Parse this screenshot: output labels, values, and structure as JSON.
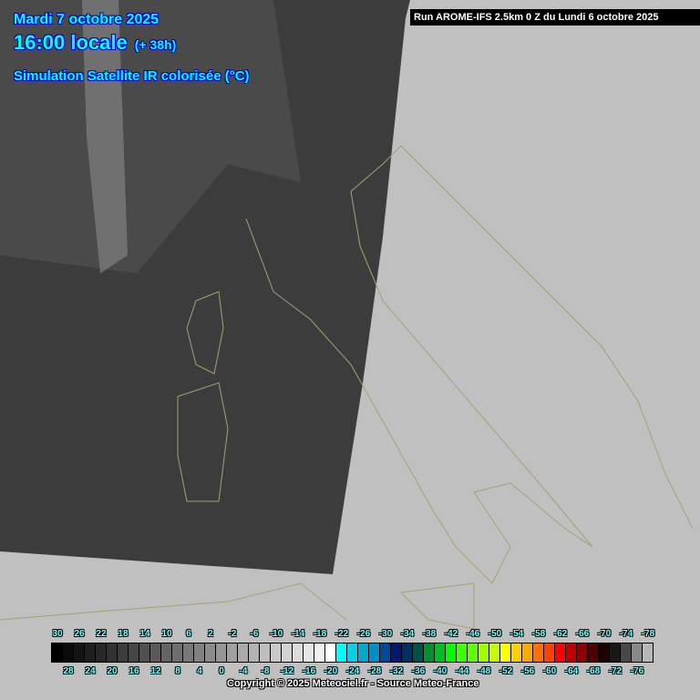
{
  "header": {
    "date": "Mardi 7 octobre 2025",
    "time": "16:00 locale",
    "lead": "(+ 38h)",
    "product": "Simulation Satellite IR colorisée (°C)"
  },
  "run_banner": "Run AROME-IFS 2.5km 0 Z du Lundi 6 octobre 2025",
  "legend": {
    "top_labels": [
      "30",
      "26",
      "22",
      "18",
      "14",
      "10",
      "6",
      "2",
      "-2",
      "-6",
      "-10",
      "-14",
      "-18",
      "-22",
      "-26",
      "-30",
      "-34",
      "-38",
      "-42",
      "-46",
      "-50",
      "-54",
      "-58",
      "-62",
      "-66",
      "-70",
      "-74",
      "-78"
    ],
    "bottom_labels": [
      "28",
      "24",
      "20",
      "16",
      "12",
      "8",
      "4",
      "0",
      "-4",
      "-8",
      "-12",
      "-16",
      "-20",
      "-24",
      "-28",
      "-32",
      "-36",
      "-40",
      "-44",
      "-48",
      "-52",
      "-56",
      "-60",
      "-64",
      "-68",
      "-72",
      "-76"
    ],
    "colors": [
      "#000000",
      "#0a0a0a",
      "#141414",
      "#1e1e1e",
      "#282828",
      "#323232",
      "#3c3c3c",
      "#464646",
      "#505050",
      "#5a5a5a",
      "#646464",
      "#6e6e6e",
      "#787878",
      "#828282",
      "#8c8c8c",
      "#969696",
      "#a0a0a0",
      "#aaaaaa",
      "#b4b4b4",
      "#bebebe",
      "#c8c8c8",
      "#d2d2d2",
      "#dcdcdc",
      "#e6e6e6",
      "#f0f0f0",
      "#ffffff",
      "#00ffff",
      "#00d0e8",
      "#00a8d0",
      "#0090c8",
      "#004898",
      "#001870",
      "#003060",
      "#005048",
      "#009030",
      "#00c020",
      "#00ff00",
      "#40ff00",
      "#60ff00",
      "#a0ff00",
      "#c8ff00",
      "#ffff00",
      "#ffd000",
      "#ffa800",
      "#ff7000",
      "#ff4000",
      "#ff0000",
      "#c00000",
      "#900000",
      "#500000",
      "#200000",
      "#181818",
      "#484848",
      "#888888",
      "#b8b8b8"
    ]
  },
  "copyright": "Copyright © 2025 Meteociel.fr - Source Meteo-France",
  "colors": {
    "background": "#c0c0c0",
    "satellite": "#3c3c3c",
    "borders": "#a8a070",
    "title_text": "#00ffff"
  }
}
